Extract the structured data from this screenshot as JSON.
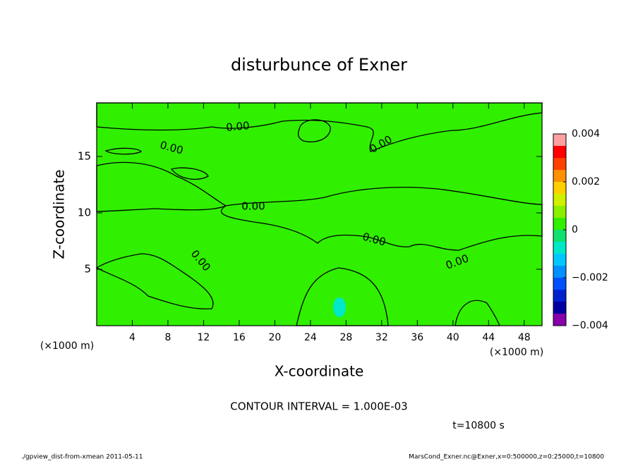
{
  "chart_data": {
    "type": "contour",
    "title": "disturbunce of Exner",
    "x_label": "X-coordinate",
    "y_label": "Z-coordinate",
    "x_unit": "(×1000 m)",
    "y_unit": "(×1000 m)",
    "xlim": [
      0,
      50
    ],
    "xticks": [
      4,
      8,
      12,
      16,
      20,
      24,
      28,
      32,
      36,
      40,
      44,
      48
    ],
    "ylim": [
      0,
      19.75
    ],
    "yticks": [
      5,
      10,
      15
    ],
    "contour_labels": [
      "0.00",
      "0.00",
      "0.00",
      "0.00",
      "0.00",
      "0.00",
      "0.00"
    ],
    "colorbar": {
      "levels": [
        -0.004,
        -0.0035,
        -0.003,
        -0.0025,
        -0.002,
        -0.0015,
        -0.001,
        -0.0005,
        0,
        0.0005,
        0.001,
        0.0015,
        0.002,
        0.0025,
        0.003,
        0.0035,
        0.004
      ],
      "colors": [
        "#8800aa",
        "#0000a0",
        "#0020d0",
        "#0050ff",
        "#0090ff",
        "#00c8ff",
        "#00e8c8",
        "#10e070",
        "#30f000",
        "#88f000",
        "#d0f000",
        "#ffd000",
        "#ff9000",
        "#ff4000",
        "#ff0000",
        "#ffa0a0"
      ],
      "ticks": [
        {
          "value": -0.004,
          "label": "−0.004"
        },
        {
          "value": -0.002,
          "label": "−0.002"
        },
        0,
        0.002,
        0.004
      ]
    },
    "contour_interval": "CONTOUR INTERVAL = 1.000E-03",
    "time_label": "t=10800 s",
    "footer_left": "./gpview_dist-from-xmean  2011-05-11",
    "footer_right": "MarsCond_Exner.nc@Exner,x=0:500000,z=0:25000,t=10800"
  }
}
